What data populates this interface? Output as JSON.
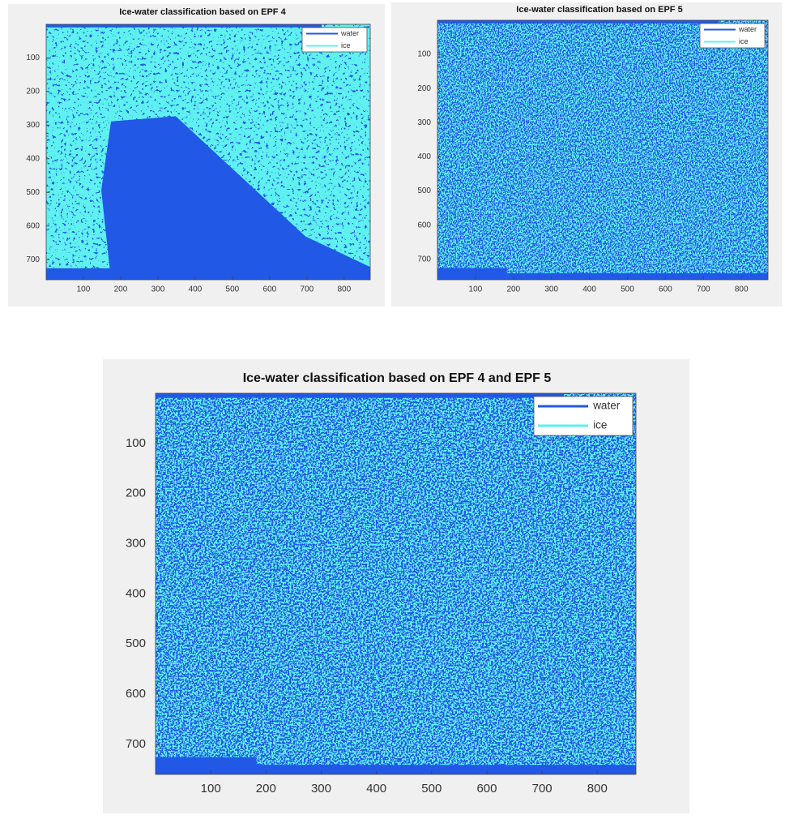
{
  "chart_data": [
    {
      "type": "image",
      "title": "Ice-water classification based on EPF 4",
      "series": [
        {
          "name": "water",
          "color": "#2158e6"
        },
        {
          "name": "ice",
          "color": "#5ff0f0"
        }
      ],
      "xlim": [
        0,
        870
      ],
      "ylim": [
        0,
        760
      ],
      "y_reversed": true,
      "xticks": [
        100,
        200,
        300,
        400,
        500,
        600,
        700,
        800
      ],
      "yticks": [
        100,
        200,
        300,
        400,
        500,
        600,
        700
      ],
      "legend": "upper right"
    },
    {
      "type": "image",
      "title": "Ice-water classification based on EPF 5",
      "series": [
        {
          "name": "water",
          "color": "#2158e6"
        },
        {
          "name": "ice",
          "color": "#5ff0f0"
        }
      ],
      "xlim": [
        0,
        870
      ],
      "ylim": [
        0,
        760
      ],
      "y_reversed": true,
      "xticks": [
        100,
        200,
        300,
        400,
        500,
        600,
        700,
        800
      ],
      "yticks": [
        100,
        200,
        300,
        400,
        500,
        600,
        700
      ],
      "legend": "upper right"
    },
    {
      "type": "image",
      "title": "Ice-water classification based on EPF 4 and EPF 5",
      "series": [
        {
          "name": "water",
          "color": "#2158e6"
        },
        {
          "name": "ice",
          "color": "#5ff0f0"
        }
      ],
      "xlim": [
        0,
        870
      ],
      "ylim": [
        0,
        760
      ],
      "y_reversed": true,
      "xticks": [
        100,
        200,
        300,
        400,
        500,
        600,
        700,
        800
      ],
      "yticks": [
        100,
        200,
        300,
        400,
        500,
        600,
        700
      ],
      "legend": "upper right"
    }
  ]
}
